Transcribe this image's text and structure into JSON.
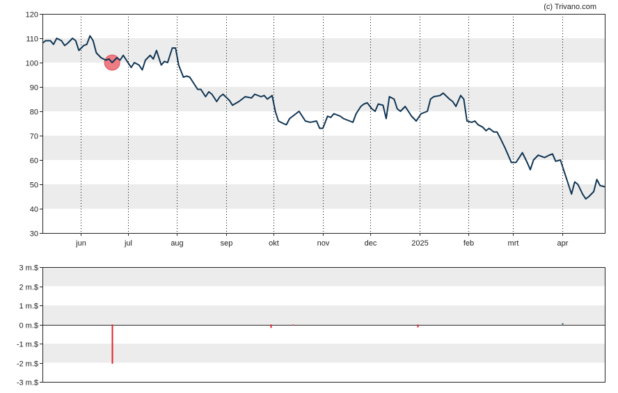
{
  "copyright": "(c) Trivano.com",
  "colors": {
    "line": "#0d3352",
    "band": "#ececec",
    "grid": "#000000",
    "marker": "#f07c83",
    "negative_bar": "#e0202a",
    "positive_bar": "#0d3352"
  },
  "chart_data": [
    {
      "type": "line",
      "ylim": [
        30,
        120
      ],
      "y_ticks": [
        "120",
        "110",
        "100",
        "90",
        "80",
        "70",
        "60",
        "50",
        "40",
        "30"
      ],
      "x_range": [
        "2024-05-08",
        "2025-04-28"
      ],
      "month_ticks": [
        {
          "label": "jun",
          "date": "2024-06-01"
        },
        {
          "label": "jul",
          "date": "2024-07-01"
        },
        {
          "label": "aug",
          "date": "2024-08-01"
        },
        {
          "label": "sep",
          "date": "2024-09-01"
        },
        {
          "label": "okt",
          "date": "2024-10-01"
        },
        {
          "label": "nov",
          "date": "2024-11-01"
        },
        {
          "label": "dec",
          "date": "2024-12-01"
        },
        {
          "label": "2025",
          "date": "2025-01-01"
        },
        {
          "label": "feb",
          "date": "2025-02-01"
        },
        {
          "label": "mrt",
          "date": "2025-03-01"
        },
        {
          "label": "apr",
          "date": "2025-04-01"
        }
      ],
      "series": [
        {
          "points": [
            [
              "2024-05-08",
              108
            ],
            [
              "2024-05-10",
              109
            ],
            [
              "2024-05-13",
              109
            ],
            [
              "2024-05-15",
              107.5
            ],
            [
              "2024-05-17",
              110
            ],
            [
              "2024-05-20",
              109
            ],
            [
              "2024-05-22",
              107
            ],
            [
              "2024-05-24",
              108
            ],
            [
              "2024-05-27",
              110
            ],
            [
              "2024-05-29",
              109
            ],
            [
              "2024-05-31",
              105
            ],
            [
              "2024-06-03",
              107
            ],
            [
              "2024-06-05",
              107.5
            ],
            [
              "2024-06-07",
              111
            ],
            [
              "2024-06-09",
              109
            ],
            [
              "2024-06-11",
              104
            ],
            [
              "2024-06-14",
              102
            ],
            [
              "2024-06-17",
              101
            ],
            [
              "2024-06-19",
              101.5
            ],
            [
              "2024-06-21",
              100
            ],
            [
              "2024-06-24",
              102
            ],
            [
              "2024-06-26",
              101
            ],
            [
              "2024-06-28",
              103
            ],
            [
              "2024-07-01",
              100
            ],
            [
              "2024-07-03",
              98
            ],
            [
              "2024-07-05",
              100
            ],
            [
              "2024-07-08",
              99
            ],
            [
              "2024-07-10",
              97
            ],
            [
              "2024-07-12",
              101
            ],
            [
              "2024-07-15",
              103
            ],
            [
              "2024-07-17",
              101.5
            ],
            [
              "2024-07-19",
              105
            ],
            [
              "2024-07-22",
              99
            ],
            [
              "2024-07-24",
              100.5
            ],
            [
              "2024-07-26",
              100
            ],
            [
              "2024-07-29",
              106
            ],
            [
              "2024-07-31",
              106
            ],
            [
              "2024-08-02",
              99
            ],
            [
              "2024-08-05",
              94
            ],
            [
              "2024-08-07",
              94.5
            ],
            [
              "2024-08-09",
              94
            ],
            [
              "2024-08-12",
              91
            ],
            [
              "2024-08-14",
              89
            ],
            [
              "2024-08-16",
              89
            ],
            [
              "2024-08-19",
              86
            ],
            [
              "2024-08-21",
              88
            ],
            [
              "2024-08-23",
              87
            ],
            [
              "2024-08-26",
              84
            ],
            [
              "2024-08-28",
              86
            ],
            [
              "2024-08-30",
              87
            ],
            [
              "2024-09-03",
              84.5
            ],
            [
              "2024-09-05",
              82.5
            ],
            [
              "2024-09-09",
              84
            ],
            [
              "2024-09-11",
              85
            ],
            [
              "2024-09-13",
              86
            ],
            [
              "2024-09-17",
              85.5
            ],
            [
              "2024-09-19",
              87
            ],
            [
              "2024-09-23",
              86
            ],
            [
              "2024-09-25",
              86.5
            ],
            [
              "2024-09-27",
              85
            ],
            [
              "2024-09-30",
              86.5
            ],
            [
              "2024-10-02",
              80
            ],
            [
              "2024-10-04",
              76
            ],
            [
              "2024-10-07",
              75
            ],
            [
              "2024-10-09",
              74.5
            ],
            [
              "2024-10-11",
              77
            ],
            [
              "2024-10-15",
              79
            ],
            [
              "2024-10-17",
              80
            ],
            [
              "2024-10-21",
              76
            ],
            [
              "2024-10-24",
              75.5
            ],
            [
              "2024-10-28",
              76
            ],
            [
              "2024-10-30",
              73
            ],
            [
              "2024-11-01",
              73
            ],
            [
              "2024-11-04",
              78
            ],
            [
              "2024-11-06",
              77.5
            ],
            [
              "2024-11-08",
              79
            ],
            [
              "2024-11-12",
              78
            ],
            [
              "2024-11-14",
              77
            ],
            [
              "2024-11-18",
              76
            ],
            [
              "2024-11-20",
              75.5
            ],
            [
              "2024-11-22",
              79
            ],
            [
              "2024-11-25",
              82
            ],
            [
              "2024-11-27",
              83
            ],
            [
              "2024-11-29",
              83.5
            ],
            [
              "2024-12-02",
              81
            ],
            [
              "2024-12-04",
              80
            ],
            [
              "2024-12-06",
              83
            ],
            [
              "2024-12-09",
              82.5
            ],
            [
              "2024-12-11",
              77
            ],
            [
              "2024-12-13",
              86
            ],
            [
              "2024-12-16",
              85
            ],
            [
              "2024-12-18",
              81
            ],
            [
              "2024-12-20",
              80
            ],
            [
              "2024-12-23",
              82
            ],
            [
              "2024-12-27",
              78
            ],
            [
              "2024-12-30",
              76
            ],
            [
              "2025-01-02",
              79
            ],
            [
              "2025-01-06",
              80
            ],
            [
              "2025-01-08",
              85
            ],
            [
              "2025-01-10",
              86
            ],
            [
              "2025-01-14",
              86.5
            ],
            [
              "2025-01-16",
              87.5
            ],
            [
              "2025-01-20",
              85
            ],
            [
              "2025-01-22",
              84
            ],
            [
              "2025-01-24",
              82
            ],
            [
              "2025-01-27",
              86.5
            ],
            [
              "2025-01-29",
              85
            ],
            [
              "2025-01-31",
              76
            ],
            [
              "2025-02-03",
              75.5
            ],
            [
              "2025-02-05",
              76
            ],
            [
              "2025-02-07",
              74.5
            ],
            [
              "2025-02-10",
              73.5
            ],
            [
              "2025-02-12",
              72
            ],
            [
              "2025-02-14",
              73
            ],
            [
              "2025-02-17",
              71.5
            ],
            [
              "2025-02-19",
              71.5
            ],
            [
              "2025-02-21",
              69
            ],
            [
              "2025-02-24",
              65
            ],
            [
              "2025-02-26",
              62
            ],
            [
              "2025-02-28",
              59
            ],
            [
              "2025-03-03",
              59
            ],
            [
              "2025-03-05",
              61
            ],
            [
              "2025-03-07",
              63
            ],
            [
              "2025-03-10",
              59
            ],
            [
              "2025-03-12",
              56
            ],
            [
              "2025-03-14",
              60
            ],
            [
              "2025-03-17",
              62
            ],
            [
              "2025-03-19",
              61.5
            ],
            [
              "2025-03-21",
              61
            ],
            [
              "2025-03-24",
              62
            ],
            [
              "2025-03-26",
              62.5
            ],
            [
              "2025-03-28",
              59.5
            ],
            [
              "2025-03-31",
              60
            ],
            [
              "2025-04-02",
              56
            ],
            [
              "2025-04-04",
              52
            ],
            [
              "2025-04-07",
              46
            ],
            [
              "2025-04-09",
              51
            ],
            [
              "2025-04-11",
              50
            ],
            [
              "2025-04-14",
              46
            ],
            [
              "2025-04-16",
              44
            ],
            [
              "2025-04-18",
              45
            ],
            [
              "2025-04-21",
              47
            ],
            [
              "2025-04-23",
              52
            ],
            [
              "2025-04-25",
              49.5
            ],
            [
              "2025-04-28",
              49
            ]
          ]
        }
      ],
      "marker": {
        "date": "2024-06-21",
        "value": 100
      }
    },
    {
      "type": "bar",
      "ylim": [
        -3,
        3
      ],
      "y_ticks": [
        "3 m.$",
        "2 m.$",
        "1 m.$",
        "0 m.$",
        "-1 m.$",
        "-2 m.$",
        "-3 m.$"
      ],
      "bars": [
        {
          "date": "2024-06-21",
          "value": -2.05
        },
        {
          "date": "2024-09-29",
          "value": -0.18
        },
        {
          "date": "2024-10-13",
          "value": -0.06
        },
        {
          "date": "2024-12-31",
          "value": -0.15
        },
        {
          "date": "2025-04-01",
          "value": 0.06
        }
      ]
    }
  ]
}
